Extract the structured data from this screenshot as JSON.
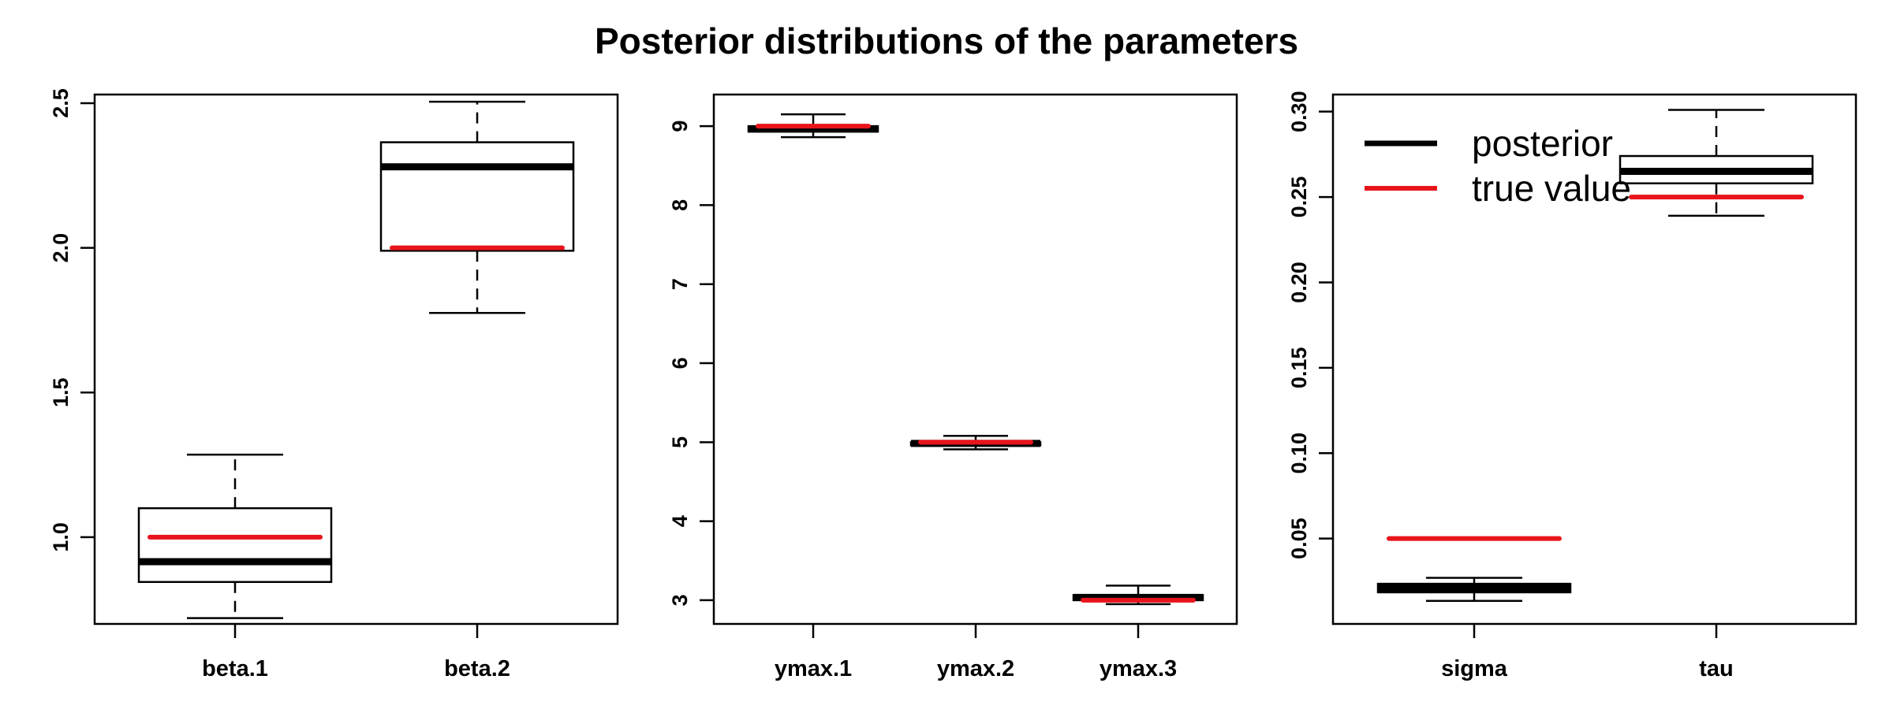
{
  "title": "Posterior distributions of the parameters",
  "colors": {
    "posterior": "#000000",
    "true_value": "#e8141b"
  },
  "legend": {
    "placement": "top-left of third panel",
    "entries": [
      {
        "label": "posterior",
        "color": "#000000"
      },
      {
        "label": "true value",
        "color": "#e8141b"
      }
    ]
  },
  "chart_data": [
    {
      "type": "boxplot",
      "ylim": [
        0.7,
        2.53
      ],
      "yticks": [
        "1.0",
        "1.5",
        "2.0",
        "2.5"
      ],
      "categories": [
        "beta.1",
        "beta.2"
      ],
      "boxes": [
        {
          "whisker_low": 0.72,
          "q1": 0.845,
          "median": 0.915,
          "q3": 1.1,
          "whisker_high": 1.285,
          "true_value": 1.0
        },
        {
          "whisker_low": 1.775,
          "q1": 1.99,
          "median": 2.28,
          "q3": 2.365,
          "whisker_high": 2.505,
          "true_value": 2.0
        }
      ]
    },
    {
      "type": "boxplot",
      "ylim": [
        2.7,
        9.4
      ],
      "yticks": [
        "3",
        "4",
        "5",
        "6",
        "7",
        "8",
        "9"
      ],
      "categories": [
        "ymax.1",
        "ymax.2",
        "ymax.3"
      ],
      "boxes": [
        {
          "whisker_low": 8.86,
          "q1": 8.93,
          "median": 8.965,
          "q3": 9.0,
          "whisker_high": 9.15,
          "true_value": 9.0
        },
        {
          "whisker_low": 4.91,
          "q1": 4.96,
          "median": 4.985,
          "q3": 5.0,
          "whisker_high": 5.08,
          "true_value": 5.0
        },
        {
          "whisker_low": 2.95,
          "q1": 3.0,
          "median": 3.035,
          "q3": 3.065,
          "whisker_high": 3.185,
          "true_value": 3.0
        }
      ]
    },
    {
      "type": "boxplot",
      "ylim": [
        0.0,
        0.31
      ],
      "yticks": [
        "0.05",
        "0.10",
        "0.15",
        "0.20",
        "0.25",
        "0.30"
      ],
      "categories": [
        "sigma",
        "tau"
      ],
      "boxes": [
        {
          "whisker_low": 0.0135,
          "q1": 0.0185,
          "median": 0.021,
          "q3": 0.0235,
          "whisker_high": 0.027,
          "true_value": 0.05
        },
        {
          "whisker_low": 0.239,
          "q1": 0.258,
          "median": 0.265,
          "q3": 0.274,
          "whisker_high": 0.301,
          "true_value": 0.25
        }
      ]
    }
  ]
}
